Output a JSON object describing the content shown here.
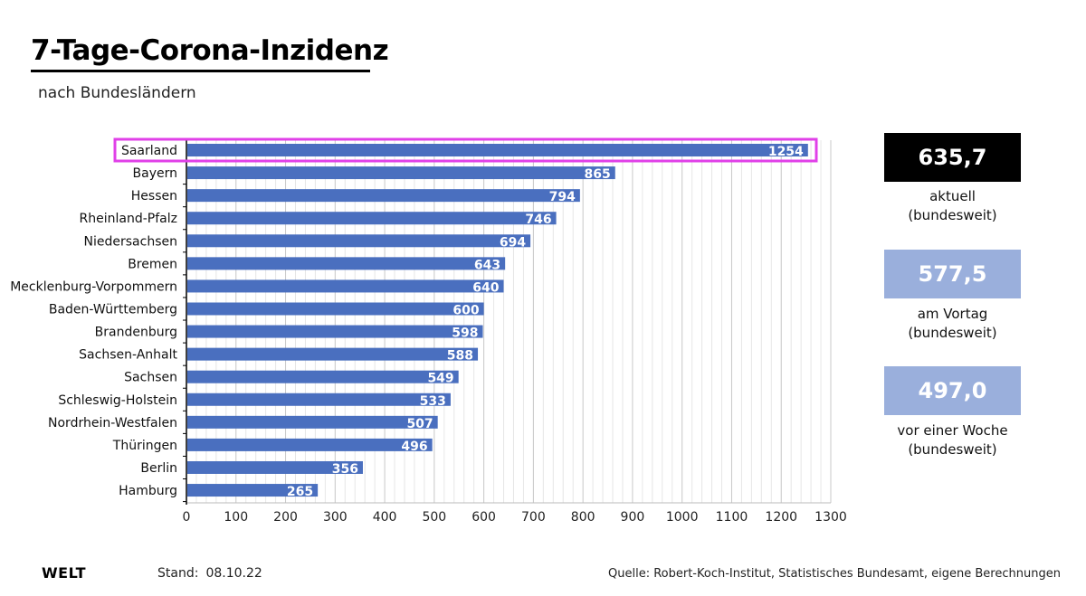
{
  "header": {
    "title": "7-Tage-Corona-Inzidenz",
    "subtitle": "nach Bundesländern"
  },
  "chart_data": {
    "type": "bar",
    "orientation": "horizontal",
    "categories": [
      "Saarland",
      "Bayern",
      "Hessen",
      "Rheinland-Pfalz",
      "Niedersachsen",
      "Bremen",
      "Mecklenburg-Vorpommern",
      "Baden-Württemberg",
      "Brandenburg",
      "Sachsen-Anhalt",
      "Sachsen",
      "Schleswig-Holstein",
      "Nordrhein-Westfalen",
      "Thüringen",
      "Berlin",
      "Hamburg"
    ],
    "values": [
      1254,
      865,
      794,
      746,
      694,
      643,
      640,
      600,
      598,
      588,
      549,
      533,
      507,
      496,
      356,
      265
    ],
    "xlim": [
      0,
      1300
    ],
    "xticks": [
      0,
      100,
      200,
      300,
      400,
      500,
      600,
      700,
      800,
      900,
      1000,
      1100,
      1200,
      1300
    ],
    "grid": true,
    "highlighted_category": "Saarland",
    "colors": {
      "bar": "#4a6fbf",
      "highlight": "#e040e8",
      "grid": "#d5d5d5"
    }
  },
  "stats": {
    "current": {
      "value": "635,7",
      "label_line1": "aktuell",
      "label_line2": "(bundesweit)"
    },
    "previous_day": {
      "value": "577,5",
      "label_line1": "am Vortag",
      "label_line2": "(bundesweit)"
    },
    "previous_week": {
      "value": "497,0",
      "label_line1": "vor einer Woche",
      "label_line2": "(bundesweit)"
    }
  },
  "footer": {
    "logo": "WELT",
    "stand_label": "Stand:",
    "stand_date": "08.10.22",
    "source": "Quelle: Robert-Koch-Institut, Statistisches Bundesamt, eigene Berechnungen"
  }
}
